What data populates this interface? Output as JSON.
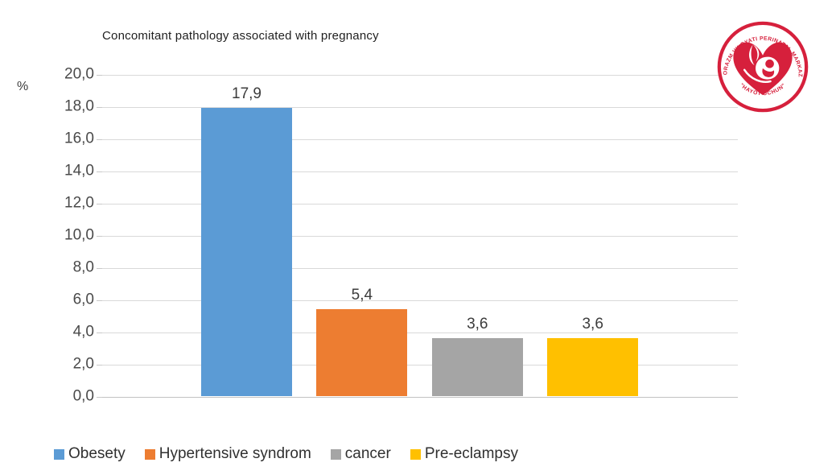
{
  "chart_data": {
    "type": "bar",
    "title": "Concomitant pathology associated with pregnancy",
    "ylabel": "%",
    "xlabel": "",
    "categories": [
      "Obesety",
      "Hypertensive syndrom",
      "cancer",
      "Pre-eclampsy"
    ],
    "values": [
      17.9,
      5.4,
      3.6,
      3.6
    ],
    "value_labels": [
      "17,9",
      "5,4",
      "3,6",
      "3,6"
    ],
    "colors": [
      "#5B9BD5",
      "#ED7D31",
      "#A5A5A5",
      "#FFC000"
    ],
    "ylim": [
      0,
      20
    ],
    "ytick_step": 2,
    "ytick_labels": [
      "20,0",
      "18,0",
      "16,0",
      "14,0",
      "12,0",
      "10,0",
      "8,0",
      "6,0",
      "4,0",
      "2,0",
      "0,0"
    ],
    "grid": true,
    "legend_position": "bottom"
  },
  "logo": {
    "arc_text_top": "XORAZM VILOYATI PERINATAL MARKAZI",
    "arc_text_bottom": "\"HAYOT UCHUN\"",
    "color": "#D6203C"
  }
}
